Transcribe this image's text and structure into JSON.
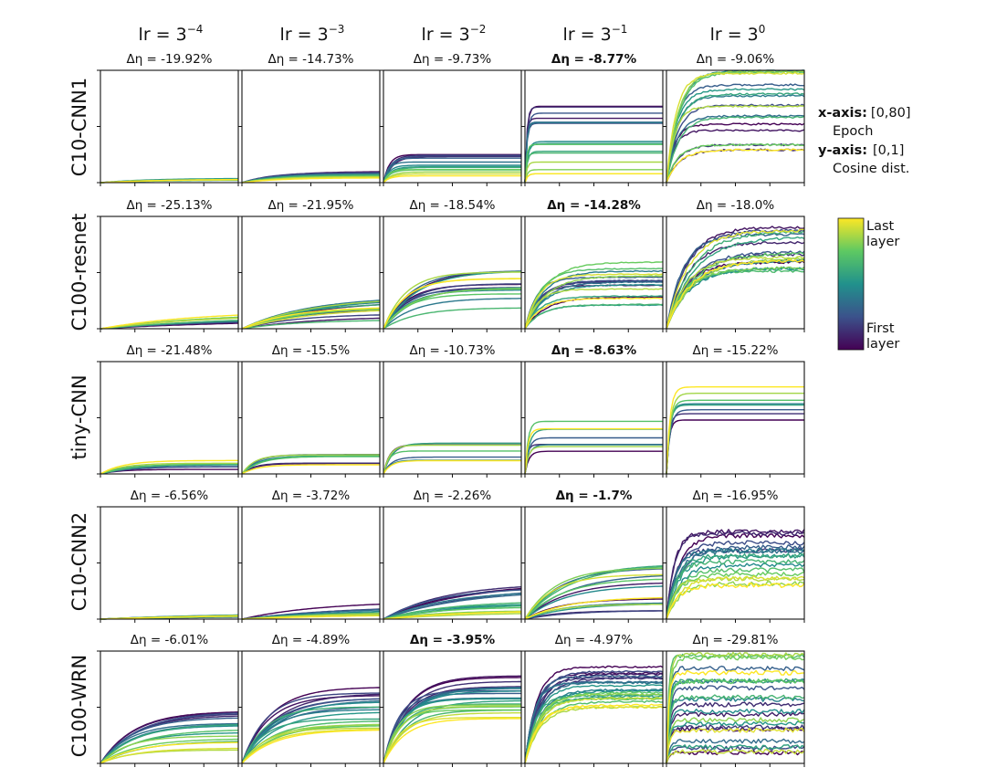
{
  "chart_data": {
    "type": "line",
    "layout": "small-multiples grid, 5 rows (models) x 5 columns (learning rates)",
    "column_titles": [
      {
        "base": "lr = 3",
        "exp": "−4"
      },
      {
        "base": "lr = 3",
        "exp": "−3"
      },
      {
        "base": "lr = 3",
        "exp": "−2"
      },
      {
        "base": "lr = 3",
        "exp": "−1"
      },
      {
        "base": "lr = 3",
        "exp": "0"
      }
    ],
    "row_titles": [
      "C10-CNN1",
      "C100-resnet",
      "tiny-CNN",
      "C10-CNN2",
      "C100-WRN"
    ],
    "delta_prefix": "Δη = ",
    "delta_eta": [
      [
        {
          "value": "-19.92%",
          "bold": false
        },
        {
          "value": "-14.73%",
          "bold": false
        },
        {
          "value": "-9.73%",
          "bold": false
        },
        {
          "value": "-8.77%",
          "bold": true
        },
        {
          "value": "-9.06%",
          "bold": false
        }
      ],
      [
        {
          "value": "-25.13%",
          "bold": false
        },
        {
          "value": "-21.95%",
          "bold": false
        },
        {
          "value": "-18.54%",
          "bold": false
        },
        {
          "value": "-14.28%",
          "bold": true
        },
        {
          "value": "-18.0%",
          "bold": false
        }
      ],
      [
        {
          "value": "-21.48%",
          "bold": false
        },
        {
          "value": "-15.5%",
          "bold": false
        },
        {
          "value": "-10.73%",
          "bold": false
        },
        {
          "value": "-8.63%",
          "bold": true
        },
        {
          "value": "-15.22%",
          "bold": false
        }
      ],
      [
        {
          "value": "-6.56%",
          "bold": false
        },
        {
          "value": "-3.72%",
          "bold": false
        },
        {
          "value": "-2.26%",
          "bold": false
        },
        {
          "value": "-1.7%",
          "bold": true
        },
        {
          "value": "-16.95%",
          "bold": false
        }
      ],
      [
        {
          "value": "-6.01%",
          "bold": false
        },
        {
          "value": "-4.89%",
          "bold": false
        },
        {
          "value": "-3.95%",
          "bold": true
        },
        {
          "value": "-4.97%",
          "bold": false
        },
        {
          "value": "-29.81%",
          "bold": false
        }
      ]
    ],
    "x_axis": {
      "label": "Epoch",
      "range": [
        0,
        80
      ]
    },
    "y_axis": {
      "label": "Cosine dist.",
      "range": [
        0,
        1
      ]
    },
    "axis_note": {
      "x_key": "x-axis:",
      "x_range": "[0,80]",
      "x_label": "Epoch",
      "y_key": "y-axis:",
      "y_range": "[0,1]",
      "y_label": "Cosine dist."
    },
    "colorbar": {
      "colormap": "viridis",
      "stops": [
        "#440154",
        "#3b528b",
        "#21918c",
        "#5ec962",
        "#fde725"
      ],
      "top_label_1": "Last",
      "top_label_2": "layer",
      "bottom_label_1": "First",
      "bottom_label_2": "layer"
    },
    "curve_families": [
      [
        {
          "n": 12,
          "lo": 0.02,
          "hi": 0.04,
          "tau": 35,
          "noise": 0.0,
          "pattern": "mixed"
        },
        {
          "n": 12,
          "lo": 0.04,
          "hi": 0.1,
          "tau": 20,
          "noise": 0.0,
          "pattern": "purple-high"
        },
        {
          "n": 14,
          "lo": 0.06,
          "hi": 0.25,
          "tau": 4,
          "noise": 0.0,
          "pattern": "purple-high"
        },
        {
          "n": 16,
          "lo": 0.08,
          "hi": 0.68,
          "tau": 1.2,
          "noise": 0.0,
          "pattern": "purple-high"
        },
        {
          "n": 18,
          "lo": 0.22,
          "hi": 1.0,
          "tau": 6,
          "noise": 0.008,
          "pattern": "mixed"
        }
      ],
      [
        {
          "n": 10,
          "lo": 0.06,
          "hi": 0.16,
          "tau": 60,
          "noise": 0.0,
          "pattern": "yellow-high"
        },
        {
          "n": 16,
          "lo": 0.08,
          "hi": 0.3,
          "tau": 35,
          "noise": 0.0,
          "pattern": "mixed"
        },
        {
          "n": 16,
          "lo": 0.16,
          "hi": 0.52,
          "tau": 15,
          "noise": 0.0,
          "pattern": "mixed"
        },
        {
          "n": 18,
          "lo": 0.2,
          "hi": 0.62,
          "tau": 9,
          "noise": 0.004,
          "pattern": "mixed"
        },
        {
          "n": 20,
          "lo": 0.5,
          "hi": 0.93,
          "tau": 12,
          "noise": 0.012,
          "pattern": "mixed"
        }
      ],
      [
        {
          "n": 8,
          "lo": 0.04,
          "hi": 0.12,
          "tau": 15,
          "noise": 0.0,
          "pattern": "yellow-high"
        },
        {
          "n": 8,
          "lo": 0.07,
          "hi": 0.18,
          "tau": 8,
          "noise": 0.0,
          "pattern": "mixed"
        },
        {
          "n": 8,
          "lo": 0.1,
          "hi": 0.28,
          "tau": 4,
          "noise": 0.0,
          "pattern": "mixed"
        },
        {
          "n": 8,
          "lo": 0.18,
          "hi": 0.47,
          "tau": 1.8,
          "noise": 0.0,
          "pattern": "mixed"
        },
        {
          "n": 8,
          "lo": 0.48,
          "hi": 0.78,
          "tau": 1.8,
          "noise": 0.0,
          "pattern": "yellow-high"
        }
      ],
      [
        {
          "n": 10,
          "lo": 0.02,
          "hi": 0.06,
          "tau": 80,
          "noise": 0.0,
          "pattern": "mixed"
        },
        {
          "n": 12,
          "lo": 0.04,
          "hi": 0.16,
          "tau": 60,
          "noise": 0.0,
          "pattern": "purple-high"
        },
        {
          "n": 16,
          "lo": 0.06,
          "hi": 0.32,
          "tau": 40,
          "noise": 0.0,
          "pattern": "purple-high"
        },
        {
          "n": 16,
          "lo": 0.06,
          "hi": 0.52,
          "tau": 20,
          "noise": 0.0,
          "pattern": "mixed"
        },
        {
          "n": 18,
          "lo": 0.3,
          "hi": 0.78,
          "tau": 6,
          "noise": 0.02,
          "pattern": "purple-high"
        }
      ],
      [
        {
          "n": 18,
          "lo": 0.12,
          "hi": 0.52,
          "tau": 18,
          "noise": 0.0,
          "pattern": "purple-high"
        },
        {
          "n": 20,
          "lo": 0.3,
          "hi": 0.68,
          "tau": 16,
          "noise": 0.0,
          "pattern": "purple-high"
        },
        {
          "n": 22,
          "lo": 0.4,
          "hi": 0.78,
          "tau": 11,
          "noise": 0.0,
          "pattern": "purple-high"
        },
        {
          "n": 24,
          "lo": 0.5,
          "hi": 0.86,
          "tau": 7,
          "noise": 0.008,
          "pattern": "purple-high"
        },
        {
          "n": 24,
          "lo": 0.05,
          "hi": 0.97,
          "tau": 1.5,
          "noise": 0.02,
          "pattern": "mixed"
        }
      ]
    ]
  }
}
